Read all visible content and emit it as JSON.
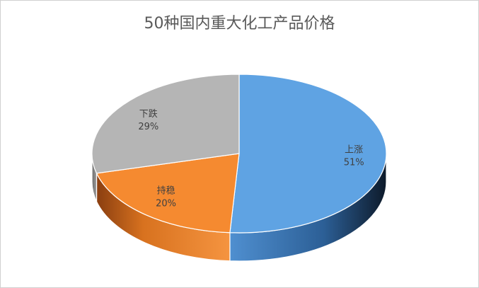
{
  "chart_data": {
    "type": "pie",
    "title": "50种国内重大化工产品价格",
    "categories": [
      "上涨",
      "持稳",
      "下跌"
    ],
    "values": [
      51,
      20,
      29
    ],
    "value_labels": [
      "51%",
      "20%",
      "29%"
    ],
    "colors": [
      "#5fa3e3",
      "#f58a30",
      "#b5b5b5"
    ],
    "side_colors": [
      "#2f6aa5",
      "#c8641e",
      "#8a8a8a"
    ],
    "style": "3d-pie"
  }
}
